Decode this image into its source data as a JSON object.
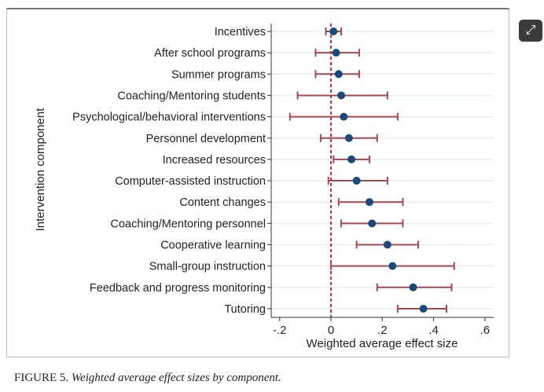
{
  "chart_data": {
    "type": "errorbar",
    "title": "",
    "xlabel": "Weighted average effect size",
    "ylabel": "Intervention component",
    "xlim": [
      -0.22,
      0.62
    ],
    "xticks": [
      -0.2,
      0,
      0.2,
      0.4,
      0.6
    ],
    "xtick_labels": [
      "-.2",
      "0",
      ".2",
      ".4",
      ".6"
    ],
    "reference_line": 0,
    "categories": [
      "Incentives",
      "After school programs",
      "Summer programs",
      "Coaching/Mentoring students",
      "Psychological/behavioral interventions",
      "Personnel development",
      "Increased resources",
      "Computer-assisted instruction",
      "Content changes",
      "Coaching/Mentoring personnel",
      "Cooperative learning",
      "Small-group instruction",
      "Feedback and progress monitoring",
      "Tutoring"
    ],
    "estimates": [
      0.01,
      0.02,
      0.03,
      0.04,
      0.05,
      0.07,
      0.08,
      0.1,
      0.15,
      0.16,
      0.22,
      0.24,
      0.32,
      0.36
    ],
    "lower": [
      -0.02,
      -0.06,
      -0.06,
      -0.13,
      -0.16,
      -0.04,
      0.01,
      -0.01,
      0.03,
      0.04,
      0.1,
      0.0,
      0.18,
      0.26
    ],
    "upper": [
      0.04,
      0.11,
      0.11,
      0.22,
      0.26,
      0.18,
      0.15,
      0.22,
      0.28,
      0.28,
      0.34,
      0.48,
      0.47,
      0.45
    ],
    "colors": {
      "point": "#1a4a7a",
      "ci": "#a8474f",
      "ref": "#c0303a",
      "grid": "#e6eef0"
    }
  },
  "caption": {
    "label": "FIGURE 5.",
    "text": "Weighted average effect sizes by component."
  },
  "expand_icon": "expand-icon"
}
